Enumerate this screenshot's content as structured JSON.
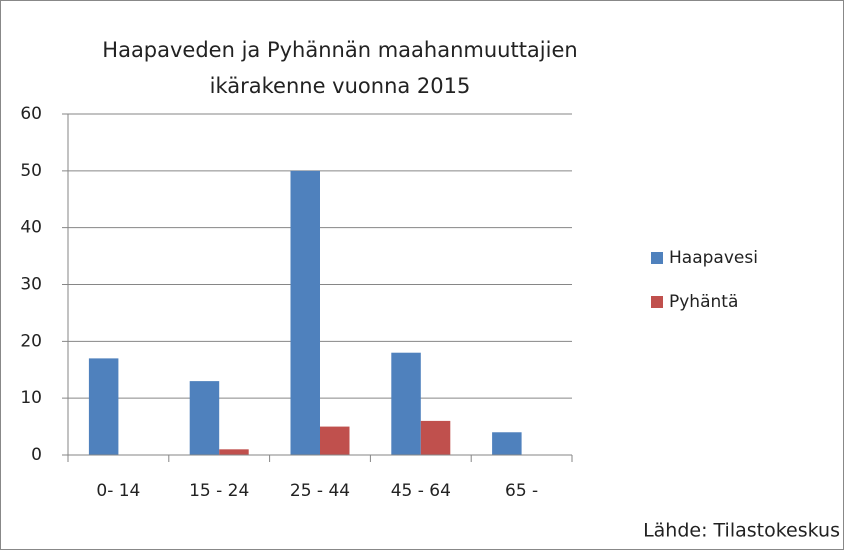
{
  "chart_data": {
    "type": "bar",
    "title": "Haapaveden ja Pyhännän maahanmuuttajien ikärakenne vuonna 2015",
    "categories": [
      "0- 14",
      "15 - 24",
      "25 - 44",
      "45 - 64",
      "65 -"
    ],
    "series": [
      {
        "name": "Haapavesi",
        "color": "#4f81bd",
        "values": [
          17,
          13,
          50,
          18,
          4
        ]
      },
      {
        "name": "Pyhäntä",
        "color": "#c0504d",
        "values": [
          0,
          1,
          5,
          6,
          0
        ]
      }
    ],
    "ylim": [
      0,
      60
    ],
    "yticks": [
      0,
      10,
      20,
      30,
      40,
      50,
      60
    ],
    "grid": true,
    "legend": "right",
    "annotation": "Lähde: Tilastokeskus"
  }
}
